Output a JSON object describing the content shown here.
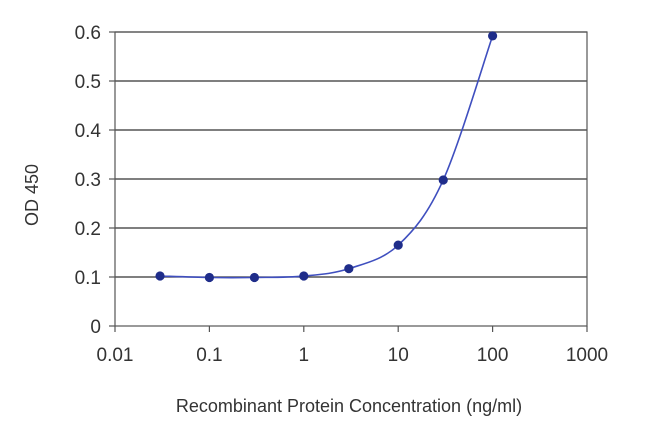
{
  "chart_data": {
    "type": "scatter",
    "xscale": "log",
    "xlabel": "Recombinant Protein Concentration (ng/ml)",
    "ylabel": "OD 450",
    "xlim": [
      0.01,
      1000
    ],
    "ylim": [
      0,
      0.6
    ],
    "x_ticks": [
      0.01,
      0.1,
      1,
      10,
      100,
      1000
    ],
    "x_tick_labels": [
      "0.01",
      "0.1",
      "1",
      "10",
      "100",
      "1000"
    ],
    "y_ticks": [
      0,
      0.1,
      0.2,
      0.3,
      0.4,
      0.5,
      0.6
    ],
    "y_tick_labels": [
      "0",
      "0.1",
      "0.2",
      "0.3",
      "0.4",
      "0.5",
      "0.6"
    ],
    "grid": "horizontal",
    "legend": "none",
    "series": [
      {
        "color": "#1f2d8a",
        "line_color": "#3f4fbf",
        "x": [
          0.03,
          0.1,
          0.3,
          1,
          3,
          10,
          30,
          100
        ],
        "y": [
          0.102,
          0.099,
          0.099,
          0.102,
          0.117,
          0.165,
          0.298,
          0.592
        ]
      }
    ]
  }
}
